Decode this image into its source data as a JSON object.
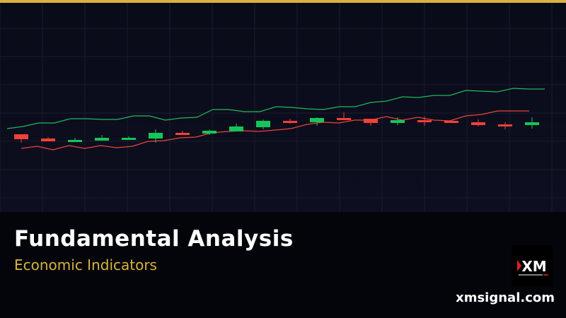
{
  "colors": {
    "accent_gold": "#d9b33b",
    "bull": "#16c55a",
    "bear": "#f2403a",
    "upper_band": "#22b85a",
    "lower_band": "#e8453a"
  },
  "banner": {
    "title": "Fundamental Analysis",
    "subtitle": "Economic Indicators",
    "site": "xmsignal.com"
  },
  "logo": {
    "text": "XM"
  },
  "chart_data": {
    "type": "candlestick",
    "grid": true,
    "axes_shown": false,
    "candles": [
      {
        "o": 110,
        "c": 103,
        "h": 110,
        "l": 98,
        "dir": "down"
      },
      {
        "o": 104,
        "c": 100,
        "h": 106,
        "l": 100,
        "dir": "down"
      },
      {
        "o": 99,
        "c": 102,
        "h": 105,
        "l": 99,
        "dir": "up"
      },
      {
        "o": 101,
        "c": 105,
        "h": 109,
        "l": 101,
        "dir": "up"
      },
      {
        "o": 102,
        "c": 105,
        "h": 107,
        "l": 102,
        "dir": "up"
      },
      {
        "o": 104,
        "c": 112,
        "h": 117,
        "l": 98,
        "dir": "up"
      },
      {
        "o": 112,
        "c": 109,
        "h": 115,
        "l": 109,
        "dir": "down"
      },
      {
        "o": 111,
        "c": 115,
        "h": 117,
        "l": 109,
        "dir": "up"
      },
      {
        "o": 114,
        "c": 121,
        "h": 125,
        "l": 114,
        "dir": "up"
      },
      {
        "o": 120,
        "c": 129,
        "h": 131,
        "l": 117,
        "dir": "up"
      },
      {
        "o": 129,
        "c": 126,
        "h": 132,
        "l": 125,
        "dir": "down"
      },
      {
        "o": 127,
        "c": 133,
        "h": 134,
        "l": 122,
        "dir": "up"
      },
      {
        "o": 133,
        "c": 130,
        "h": 141,
        "l": 130,
        "dir": "down"
      },
      {
        "o": 132,
        "c": 126,
        "h": 132,
        "l": 122,
        "dir": "down"
      },
      {
        "o": 126,
        "c": 130,
        "h": 134,
        "l": 123,
        "dir": "up"
      },
      {
        "o": 130,
        "c": 127,
        "h": 135,
        "l": 122,
        "dir": "down"
      },
      {
        "o": 129,
        "c": 126,
        "h": 129,
        "l": 126,
        "dir": "down"
      },
      {
        "o": 127,
        "c": 123,
        "h": 131,
        "l": 121,
        "dir": "down"
      },
      {
        "o": 124,
        "c": 121,
        "h": 127,
        "l": 117,
        "dir": "down"
      },
      {
        "o": 123,
        "c": 127,
        "h": 134,
        "l": 118,
        "dir": "up"
      }
    ],
    "upper_band": [
      118,
      121,
      126,
      126,
      132,
      132,
      131,
      131,
      136,
      136,
      130,
      133,
      134,
      145,
      145,
      142,
      142,
      149,
      148,
      146,
      145,
      149,
      149,
      155,
      157,
      163,
      162,
      165,
      165,
      172,
      171,
      170,
      175,
      174,
      174
    ],
    "lower_band": [
      90,
      93,
      88,
      94,
      90,
      94,
      91,
      93,
      100,
      101,
      105,
      106,
      112,
      114,
      115,
      114,
      116,
      118,
      124,
      127,
      126,
      130,
      130,
      135,
      130,
      134,
      130,
      129,
      136,
      138,
      143,
      143,
      143
    ]
  }
}
